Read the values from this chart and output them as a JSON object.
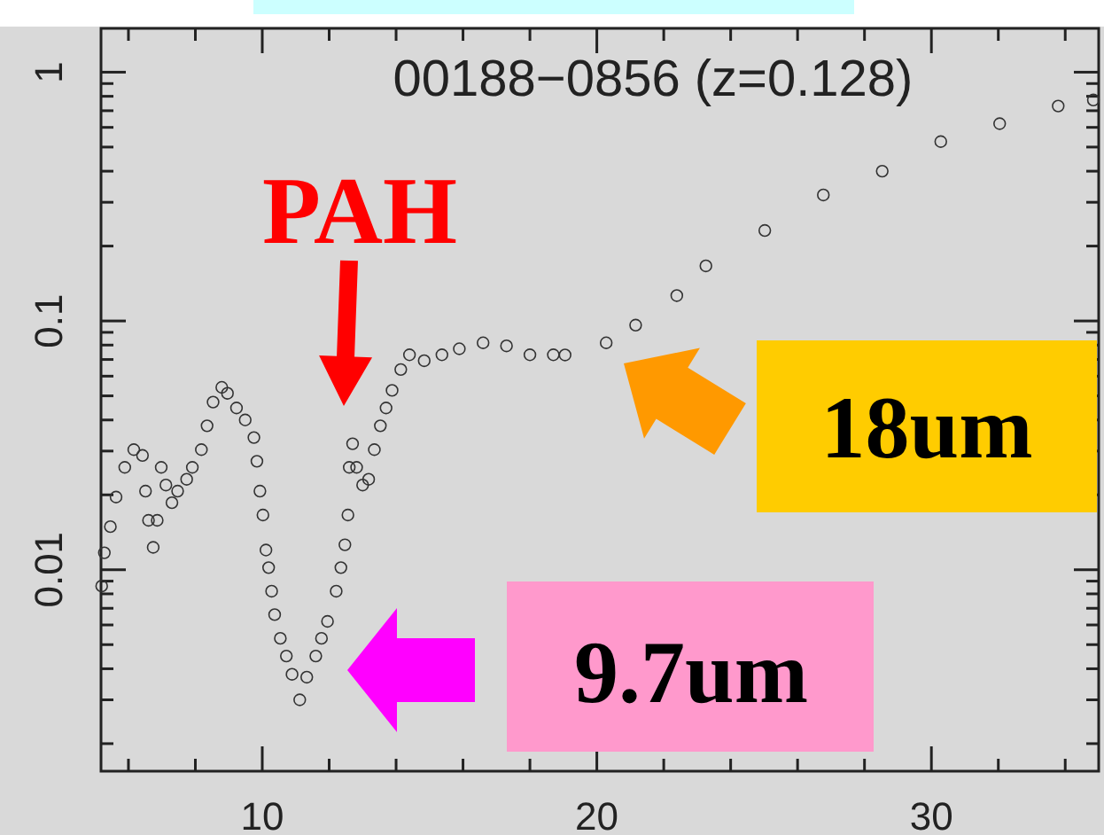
{
  "chart_data": {
    "type": "scatter",
    "title": "00188−0856 (z=0.128)",
    "marker": "circle",
    "log": "y",
    "xlim": [
      5.18,
      35
    ],
    "ylim": [
      0.00155,
      1.5
    ],
    "xticks": [
      {
        "value": 6,
        "label": null
      },
      {
        "value": 8,
        "label": null
      },
      10,
      {
        "value": 12,
        "label": null
      },
      {
        "value": 14,
        "label": null
      },
      {
        "value": 16,
        "label": null
      },
      {
        "value": 18,
        "label": null
      },
      20,
      {
        "value": 22,
        "label": null
      },
      {
        "value": 24,
        "label": null
      },
      {
        "value": 26,
        "label": null
      },
      {
        "value": 28,
        "label": null
      },
      30,
      {
        "value": 32,
        "label": null
      },
      {
        "value": 34,
        "label": null
      }
    ],
    "yticks": [
      {
        "value": 0.002,
        "label": null
      },
      {
        "value": 0.003,
        "label": null
      },
      {
        "value": 0.004,
        "label": null
      },
      {
        "value": 0.005,
        "label": null
      },
      {
        "value": 0.006,
        "label": null
      },
      {
        "value": 0.007,
        "label": null
      },
      {
        "value": 0.008,
        "label": null
      },
      {
        "value": 0.009,
        "label": null
      },
      0.01,
      {
        "value": 0.02,
        "label": null
      },
      {
        "value": 0.03,
        "label": null
      },
      {
        "value": 0.04,
        "label": null
      },
      {
        "value": 0.05,
        "label": null
      },
      {
        "value": 0.06,
        "label": null
      },
      {
        "value": 0.07,
        "label": null
      },
      {
        "value": 0.08,
        "label": null
      },
      {
        "value": 0.09,
        "label": null
      },
      0.1,
      {
        "value": 0.2,
        "label": null
      },
      {
        "value": 0.3,
        "label": null
      },
      {
        "value": 0.4,
        "label": null
      },
      {
        "value": 0.5,
        "label": null
      },
      {
        "value": 0.6,
        "label": null
      },
      {
        "value": 0.7,
        "label": null
      },
      {
        "value": 0.8,
        "label": null
      },
      {
        "value": 0.9,
        "label": null
      },
      1
    ],
    "series": [
      {
        "color": "#333333",
        "x": [
          5.2,
          5.28,
          5.46,
          5.63,
          5.89,
          6.16,
          6.42,
          6.51,
          6.6,
          6.74,
          6.86,
          6.98,
          7.12,
          7.3,
          7.47,
          7.74,
          7.91,
          8.18,
          8.35,
          8.53,
          8.79,
          8.96,
          9.23,
          9.49,
          9.75,
          9.84,
          9.93,
          10.02,
          10.11,
          10.19,
          10.28,
          10.37,
          10.54,
          10.72,
          10.89,
          11.12,
          11.33,
          11.6,
          11.77,
          11.95,
          12.21,
          12.35,
          12.47,
          12.56,
          12.6,
          12.7,
          12.82,
          13.0,
          13.18,
          13.35,
          13.53,
          13.7,
          13.88,
          14.14,
          14.4,
          14.84,
          15.37,
          15.89,
          16.6,
          17.3,
          18.0,
          18.7,
          19.05,
          20.28,
          21.16,
          22.39,
          23.26,
          25.02,
          26.77,
          28.53,
          30.28,
          32.04,
          33.79,
          34.84
        ],
        "values": [
          0.0086,
          0.0117,
          0.0149,
          0.0196,
          0.0258,
          0.0304,
          0.0288,
          0.0207,
          0.0158,
          0.0123,
          0.0158,
          0.0258,
          0.0219,
          0.0186,
          0.0207,
          0.0231,
          0.0258,
          0.0304,
          0.0379,
          0.0472,
          0.0541,
          0.0512,
          0.0447,
          0.04,
          0.034,
          0.0273,
          0.0207,
          0.0166,
          0.012,
          0.0102,
          0.0082,
          0.0066,
          0.0053,
          0.0045,
          0.0038,
          0.003,
          0.0037,
          0.0045,
          0.0053,
          0.0062,
          0.0082,
          0.0102,
          0.0126,
          0.0166,
          0.0258,
          0.0321,
          0.0258,
          0.0219,
          0.0231,
          0.0304,
          0.0379,
          0.0447,
          0.0526,
          0.0638,
          0.0731,
          0.0692,
          0.0731,
          0.0773,
          0.0817,
          0.0794,
          0.0731,
          0.0731,
          0.073,
          0.0817,
          0.0962,
          0.1265,
          0.1665,
          0.231,
          0.321,
          0.4,
          0.526,
          0.621,
          0.731,
          0.773
        ]
      }
    ],
    "annotations": [
      "PAH",
      "18um",
      "9.7um"
    ]
  }
}
